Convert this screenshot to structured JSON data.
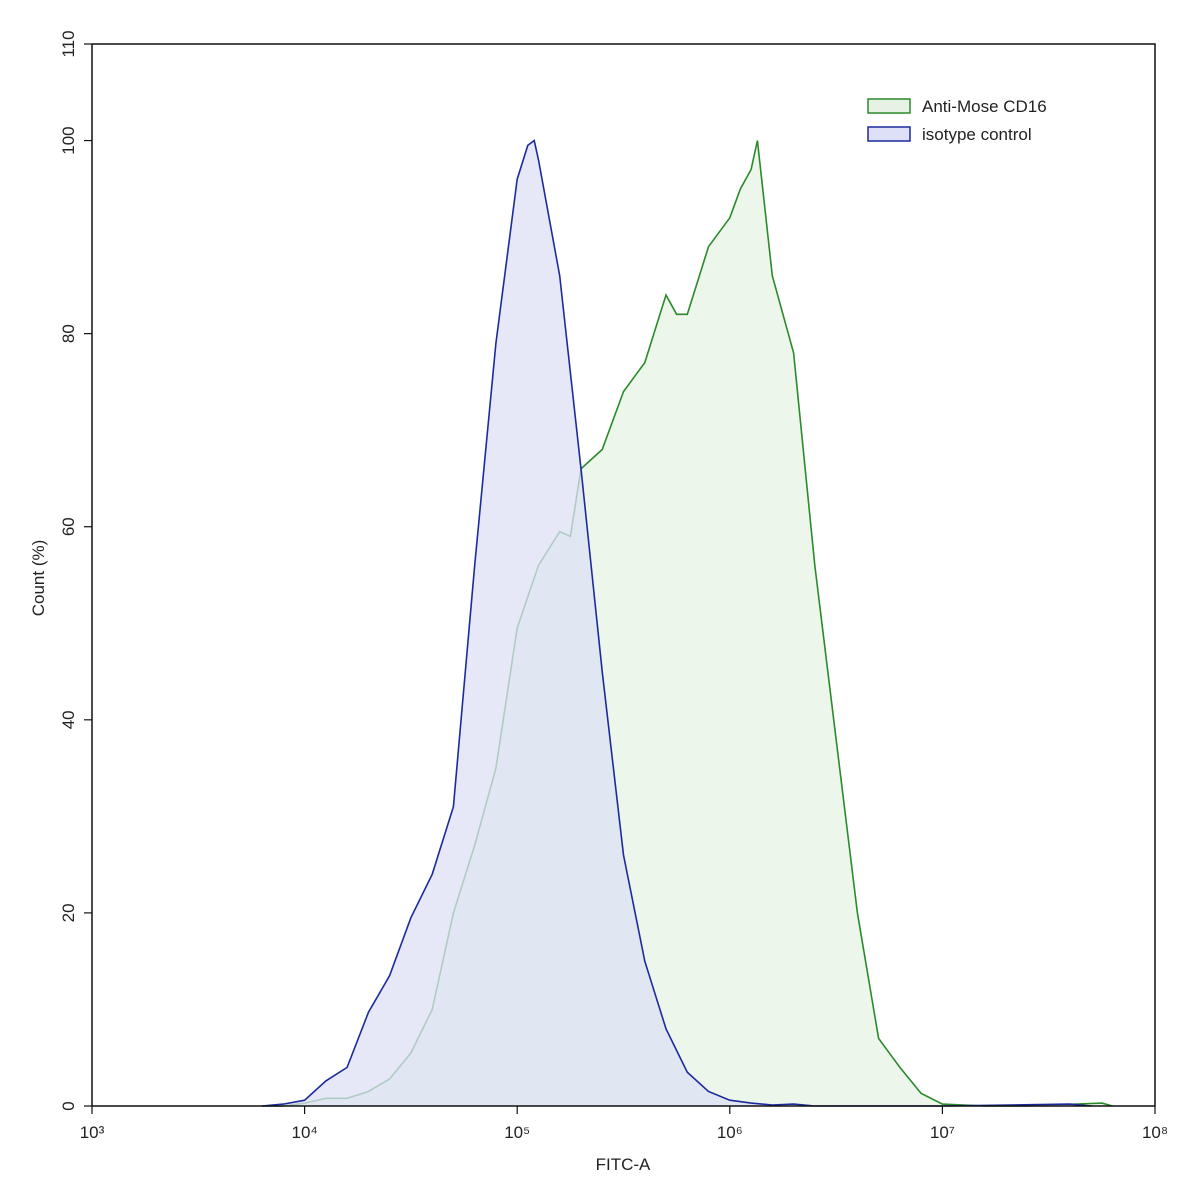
{
  "chart_data": {
    "type": "histogram-overlay",
    "xlabel": "FITC-A",
    "ylabel": "Count  (%)",
    "xscale": "log",
    "xlim": [
      1000,
      100000000
    ],
    "ylim": [
      0,
      110
    ],
    "xticks": [
      {
        "value": 1000,
        "label": "10³"
      },
      {
        "value": 10000,
        "label": "10⁴"
      },
      {
        "value": 100000,
        "label": "10⁵"
      },
      {
        "value": 1000000,
        "label": "10⁶"
      },
      {
        "value": 10000000,
        "label": "10⁷"
      },
      {
        "value": 100000000,
        "label": "10⁸"
      }
    ],
    "yticks": [
      0,
      20,
      40,
      60,
      80,
      100,
      110
    ],
    "legend": "upper right",
    "series": [
      {
        "name": "Anti-Mose CD16",
        "color": "#2a8a2a",
        "fill": "#e6f3e4",
        "x": [
          6310,
          7943,
          10000,
          12589,
          15849,
          19953,
          25119,
          31623,
          39811,
          50119,
          63096,
          79433,
          100000,
          125893,
          158489,
          177828,
          199526,
          251189,
          316228,
          398107,
          501187,
          562341,
          630957,
          794328,
          1000000,
          1122018,
          1258925,
          1348963,
          1584893,
          1995262,
          2511886,
          3162278,
          3981072,
          5011872,
          6309573,
          7943282,
          10000000,
          15848932,
          25118864,
          56234133,
          63095734
        ],
        "values": [
          0,
          0,
          0.3,
          0.8,
          0.8,
          1.5,
          2.8,
          5.5,
          10,
          20,
          27,
          35,
          49.5,
          56,
          59.5,
          59,
          66,
          68,
          74,
          77,
          84,
          82,
          82,
          89,
          92,
          95,
          97,
          100,
          86,
          78,
          56,
          38,
          20,
          7,
          4,
          1.3,
          0.2,
          0,
          0,
          0.3,
          0
        ]
      },
      {
        "name": "isotype control",
        "color": "#1c2b9c",
        "fill": "#dde0f6",
        "x": [
          6310,
          7943,
          10000,
          12589,
          15849,
          19953,
          25119,
          31623,
          39811,
          50119,
          63096,
          79433,
          100000,
          112202,
          120226,
          125893,
          158489,
          199526,
          251189,
          316228,
          398107,
          501187,
          630957,
          794328,
          1000000,
          1258925,
          1584893,
          1995262,
          2511886,
          10000000,
          39810717,
          50118723
        ],
        "values": [
          0,
          0.2,
          0.6,
          2.6,
          4,
          9.7,
          13.5,
          19.5,
          24,
          31,
          56,
          79,
          96,
          99.5,
          100,
          98,
          86,
          66,
          45,
          26,
          15,
          8,
          3.5,
          1.5,
          0.6,
          0.3,
          0.1,
          0.2,
          0,
          0,
          0.2,
          0
        ]
      }
    ]
  }
}
